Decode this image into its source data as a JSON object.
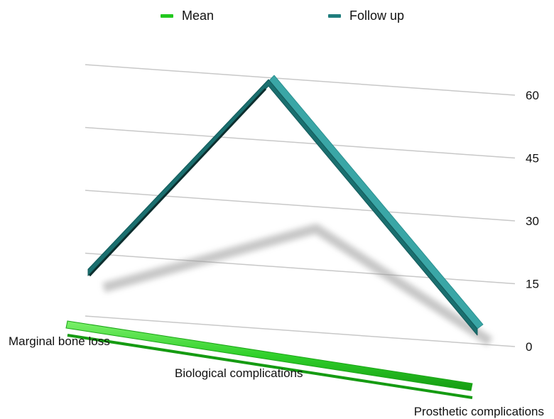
{
  "chart_data": {
    "type": "line",
    "style": "3d",
    "categories": [
      "Marginal bone loss",
      "Biological complications",
      "Prosthetic complications"
    ],
    "series": [
      {
        "name": "Mean",
        "values": [
          0,
          0,
          0
        ],
        "color": "#22c81e"
      },
      {
        "name": "Follow up",
        "values": [
          16,
          63,
          7
        ],
        "color": "#1f8080"
      }
    ],
    "y_ticks": [
      0,
      15,
      30,
      45,
      60
    ],
    "ylim": [
      0,
      63
    ],
    "grid": true,
    "legend_position": "top"
  },
  "legend": {
    "items": [
      {
        "name": "Mean"
      },
      {
        "name": "Follow up"
      }
    ]
  }
}
